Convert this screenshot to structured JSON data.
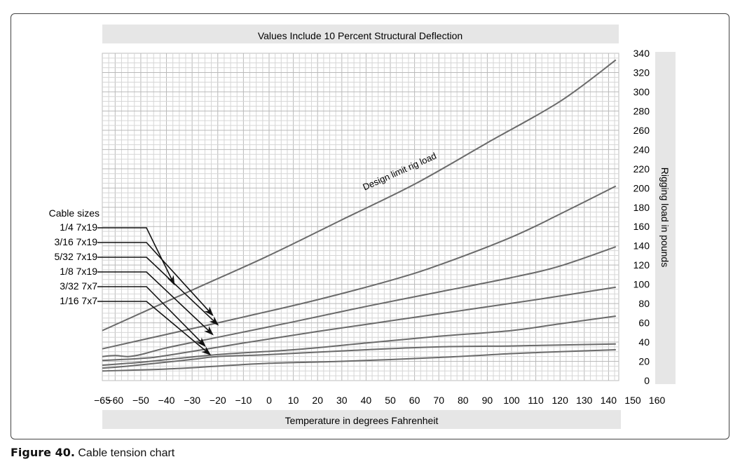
{
  "figure": {
    "label": "Figure 40.",
    "caption": "Cable tension chart"
  },
  "chart_data": {
    "type": "line",
    "title": "Values Include 10 Percent Structural Deflection",
    "xlabel": "Temperature in degrees Fahrenheit",
    "ylabel": "Rigging load in pounds",
    "xlim": [
      -65,
      160
    ],
    "ylim": [
      0,
      340
    ],
    "x_ticks": [
      -65,
      -60,
      -50,
      -40,
      -30,
      -20,
      -10,
      0,
      10,
      20,
      30,
      40,
      50,
      60,
      70,
      80,
      90,
      100,
      110,
      120,
      130,
      140,
      150,
      160
    ],
    "x_tick_labels": [
      "−65",
      "−60",
      "−50",
      "−40",
      "−30",
      "−20",
      "−10",
      "0",
      "10",
      "20",
      "30",
      "40",
      "50",
      "60",
      "70",
      "80",
      "90",
      "100",
      "110",
      "120",
      "130",
      "140",
      "150",
      "160"
    ],
    "y_ticks": [
      0,
      20,
      40,
      60,
      80,
      100,
      120,
      140,
      160,
      180,
      200,
      220,
      240,
      260,
      280,
      300,
      320,
      340
    ],
    "grid": true,
    "legend_title": "Cable sizes",
    "series": [
      {
        "name": "Design limit rig load",
        "points": [
          [
            -65,
            52
          ],
          [
            -30,
            94
          ],
          [
            0,
            130
          ],
          [
            30,
            167
          ],
          [
            60,
            204
          ],
          [
            90,
            247
          ],
          [
            120,
            290
          ],
          [
            143,
            333
          ]
        ]
      },
      {
        "name": "1/4 7x19",
        "points": [
          [
            -65,
            33
          ],
          [
            -40,
            48
          ],
          [
            -10,
            66
          ],
          [
            20,
            84
          ],
          [
            50,
            104
          ],
          [
            70,
            120
          ],
          [
            100,
            149
          ],
          [
            120,
            173
          ],
          [
            143,
            202
          ]
        ]
      },
      {
        "name": "3/16 7x19",
        "points": [
          [
            -65,
            25
          ],
          [
            -60,
            26
          ],
          [
            -55,
            25
          ],
          [
            -50,
            27
          ],
          [
            -40,
            34
          ],
          [
            -20,
            45
          ],
          [
            10,
            61
          ],
          [
            40,
            77
          ],
          [
            70,
            92
          ],
          [
            100,
            107
          ],
          [
            120,
            119
          ],
          [
            143,
            139
          ]
        ]
      },
      {
        "name": "5/32 7x19",
        "points": [
          [
            -65,
            21
          ],
          [
            -50,
            23
          ],
          [
            -40,
            26
          ],
          [
            -10,
            39
          ],
          [
            20,
            51
          ],
          [
            50,
            62
          ],
          [
            80,
            73
          ],
          [
            110,
            84
          ],
          [
            143,
            97
          ]
        ]
      },
      {
        "name": "1/8 7x19",
        "points": [
          [
            -65,
            16
          ],
          [
            -55,
            18
          ],
          [
            -50,
            19
          ],
          [
            -20,
            27
          ],
          [
            10,
            32
          ],
          [
            40,
            39
          ],
          [
            70,
            46
          ],
          [
            100,
            52
          ],
          [
            120,
            59
          ],
          [
            143,
            67
          ]
        ]
      },
      {
        "name": "3/32 7x7",
        "points": [
          [
            -65,
            13
          ],
          [
            -55,
            15
          ],
          [
            -30,
            22
          ],
          [
            -20,
            25
          ],
          [
            0,
            27
          ],
          [
            40,
            32
          ],
          [
            70,
            35
          ],
          [
            100,
            36
          ],
          [
            120,
            37
          ],
          [
            143,
            38
          ]
        ]
      },
      {
        "name": "1/16 7x7",
        "points": [
          [
            -65,
            10
          ],
          [
            -40,
            12
          ],
          [
            -20,
            15
          ],
          [
            0,
            18
          ],
          [
            30,
            20
          ],
          [
            70,
            24
          ],
          [
            100,
            28
          ],
          [
            120,
            30
          ],
          [
            143,
            32
          ]
        ]
      }
    ]
  }
}
